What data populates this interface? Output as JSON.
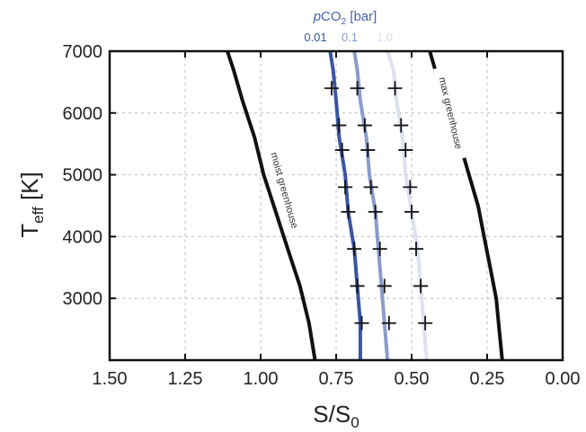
{
  "chart_data": {
    "type": "line",
    "xlabel_main": "S/S",
    "xlabel_sub": "0",
    "ylabel_main": "T",
    "ylabel_sub": "eff",
    "ylabel_unit": " [K]",
    "xlim": [
      1.5,
      0.0
    ],
    "ylim": [
      2000,
      7000
    ],
    "xticks": [
      1.5,
      1.25,
      1.0,
      0.75,
      0.5,
      0.25,
      0.0
    ],
    "xtick_labels": [
      "1.50",
      "1.25",
      "1.00",
      "0.75",
      "0.50",
      "0.25",
      "0.00"
    ],
    "yticks": [
      3000,
      4000,
      5000,
      6000,
      7000
    ],
    "ytick_labels": [
      "3000",
      "4000",
      "5000",
      "6000",
      "7000"
    ],
    "grid": true,
    "legend": {
      "title_prefix": "p",
      "title_main": "CO",
      "title_sub": "2",
      "title_suffix": " [bar]",
      "title_color": "#4a63ad",
      "entries": [
        "0.01",
        "0.1",
        "1.0"
      ],
      "entry_colors": [
        "#3a55a4",
        "#8a9bcc",
        "#d8ddf0"
      ]
    },
    "series": [
      {
        "name": "moist greenhouse",
        "color": "#111111",
        "label_at": [
          0.92,
          4750
        ],
        "points": [
          [
            0.82,
            2000
          ],
          [
            0.84,
            2600
          ],
          [
            0.87,
            3200
          ],
          [
            0.91,
            3800
          ],
          [
            0.95,
            4400
          ],
          [
            0.99,
            5000
          ],
          [
            1.02,
            5600
          ],
          [
            1.06,
            6200
          ],
          [
            1.09,
            6700
          ],
          [
            1.11,
            7000
          ]
        ]
      },
      {
        "name": "max greenhouse",
        "color": "#111111",
        "label_at": [
          0.37,
          6000
        ],
        "points": [
          [
            0.2,
            2000
          ],
          [
            0.21,
            2500
          ],
          [
            0.22,
            3000
          ],
          [
            0.24,
            3500
          ],
          [
            0.26,
            4000
          ],
          [
            0.28,
            4500
          ],
          [
            0.31,
            5000
          ],
          [
            0.34,
            5500
          ],
          [
            0.37,
            6000
          ],
          [
            0.41,
            6500
          ],
          [
            0.44,
            7000
          ]
        ]
      },
      {
        "name": "0.01",
        "color": "#3a55a4",
        "points": [
          [
            0.67,
            2000
          ],
          [
            0.67,
            2600
          ],
          [
            0.68,
            3200
          ],
          [
            0.69,
            3800
          ],
          [
            0.71,
            4400
          ],
          [
            0.72,
            5000
          ],
          [
            0.74,
            5600
          ],
          [
            0.75,
            6200
          ],
          [
            0.76,
            6700
          ],
          [
            0.77,
            7000
          ]
        ]
      },
      {
        "name": "0.1",
        "color": "#8a9bcc",
        "points": [
          [
            0.58,
            2000
          ],
          [
            0.59,
            2600
          ],
          [
            0.6,
            3200
          ],
          [
            0.61,
            3800
          ],
          [
            0.62,
            4400
          ],
          [
            0.64,
            5000
          ],
          [
            0.65,
            5600
          ],
          [
            0.67,
            6200
          ],
          [
            0.68,
            6700
          ],
          [
            0.69,
            7000
          ]
        ]
      },
      {
        "name": "1.0",
        "color": "#dde1f1",
        "points": [
          [
            0.45,
            2000
          ],
          [
            0.46,
            2600
          ],
          [
            0.47,
            3200
          ],
          [
            0.48,
            3800
          ],
          [
            0.5,
            4400
          ],
          [
            0.52,
            5000
          ],
          [
            0.53,
            5600
          ],
          [
            0.55,
            6200
          ],
          [
            0.56,
            6700
          ],
          [
            0.58,
            7000
          ]
        ]
      }
    ],
    "markers": {
      "symbol": "+",
      "points": [
        [
          0.765,
          6400
        ],
        [
          0.68,
          6400
        ],
        [
          0.555,
          6400
        ],
        [
          0.74,
          5800
        ],
        [
          0.655,
          5800
        ],
        [
          0.535,
          5800
        ],
        [
          0.73,
          5400
        ],
        [
          0.645,
          5400
        ],
        [
          0.52,
          5400
        ],
        [
          0.72,
          4800
        ],
        [
          0.635,
          4800
        ],
        [
          0.505,
          4800
        ],
        [
          0.71,
          4400
        ],
        [
          0.62,
          4400
        ],
        [
          0.5,
          4400
        ],
        [
          0.69,
          3800
        ],
        [
          0.605,
          3800
        ],
        [
          0.485,
          3800
        ],
        [
          0.68,
          3200
        ],
        [
          0.59,
          3200
        ],
        [
          0.47,
          3200
        ],
        [
          0.665,
          2600
        ],
        [
          0.575,
          2600
        ],
        [
          0.455,
          2600
        ]
      ]
    }
  }
}
